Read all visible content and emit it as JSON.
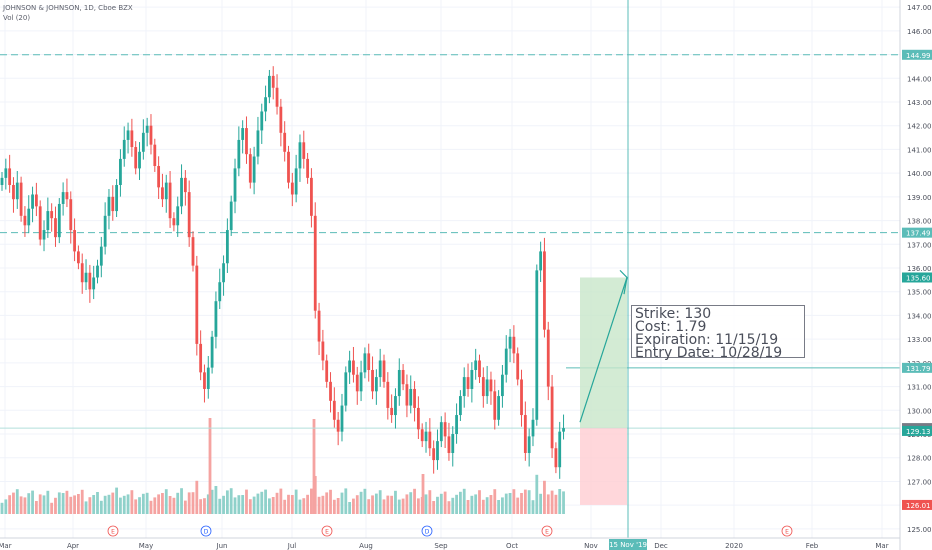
{
  "legend": {
    "symbol_line": "JOHNSON & JOHNSON, 1D, Cboe BZX",
    "volume_line": "Vol (20)"
  },
  "annotation": {
    "strike": "Strike: 130",
    "cost": "Cost: 1.79",
    "expiration": "Expiration: 11/15/19",
    "entry": "Entry Date: 10/28/19"
  },
  "colors": {
    "up": "#26a69a",
    "down": "#ef5350",
    "vol_up": "#8fd1ca",
    "vol_down": "#f5a3a1",
    "guide": "#5bbcb8",
    "profit_zone": "#c8e6c9",
    "loss_zone": "#ffcdd2"
  },
  "chart_data": {
    "type": "candlestick",
    "title": "JOHNSON & JOHNSON, 1D, Cboe BZX",
    "y_axis_ticks": [
      "125.00",
      "126.00",
      "127.00",
      "128.00",
      "129.00",
      "130.00",
      "131.00",
      "132.00",
      "133.00",
      "134.00",
      "135.00",
      "136.00",
      "137.00",
      "138.00",
      "139.00",
      "140.00",
      "141.00",
      "142.00",
      "143.00",
      "144.00",
      "145.00",
      "146.00",
      "147.00"
    ],
    "x_axis_ticks": [
      "Mar",
      "Apr",
      "May",
      "Jun",
      "Jul",
      "Aug",
      "Sep",
      "Oct",
      "Nov",
      "Dec",
      "2020",
      "Feb",
      "Mar"
    ],
    "ylim": [
      124.7,
      147.3
    ],
    "horizontal_lines": [
      144.99,
      137.49,
      131.79
    ],
    "price_labels": [
      {
        "text": "144.99",
        "value": 144.99,
        "color": "#5bbcb8"
      },
      {
        "text": "137.49",
        "value": 137.49,
        "color": "#5bbcb8"
      },
      {
        "text": "135.60",
        "value": 135.6,
        "color": "#26a69a"
      },
      {
        "text": "131.79",
        "value": 131.79,
        "color": "#5bbcb8"
      },
      {
        "text": "129.25",
        "value": 129.25,
        "color": "#787b86"
      },
      {
        "text": "129.13",
        "value": 129.13,
        "color": "#26a69a"
      },
      {
        "text": "126.01",
        "value": 126.01,
        "color": "#ef5350"
      }
    ],
    "crosshair_date_label": "15 Nov '19",
    "target_price": 135.6,
    "entry_price": 129.25,
    "stop_price": 126.01,
    "event_markers": [
      {
        "label": "E",
        "month": "Apr"
      },
      {
        "label": "D",
        "month": "May"
      },
      {
        "label": "E",
        "month": "Jul"
      },
      {
        "label": "D",
        "month": "Aug"
      },
      {
        "label": "E",
        "month": "Oct"
      },
      {
        "label": "E",
        "month": "Jan"
      }
    ],
    "close_series": [
      139.8,
      140.2,
      139.5,
      138.9,
      139.6,
      138.2,
      137.8,
      138.5,
      139.1,
      138.6,
      137.2,
      137.6,
      138.4,
      138.1,
      137.3,
      138.7,
      139.2,
      138.9,
      137.6,
      136.7,
      136.2,
      135.4,
      135.8,
      135.1,
      135.6,
      136.1,
      136.9,
      138.2,
      139.0,
      138.4,
      139.5,
      140.6,
      141.4,
      141.8,
      141.1,
      140.2,
      140.9,
      141.7,
      142.0,
      141.2,
      140.3,
      139.4,
      138.9,
      139.6,
      138.1,
      137.8,
      138.6,
      139.8,
      139.2,
      137.3,
      136.1,
      132.8,
      131.6,
      130.9,
      131.8,
      133.1,
      134.6,
      135.4,
      136.2,
      137.6,
      138.8,
      140.2,
      141.4,
      141.9,
      140.8,
      139.6,
      140.7,
      141.8,
      142.6,
      143.2,
      144.1,
      143.6,
      142.8,
      141.7,
      140.9,
      139.6,
      139.1,
      140.2,
      141.3,
      140.6,
      139.8,
      138.2,
      134.2,
      132.9,
      132.1,
      131.2,
      130.4,
      129.6,
      129.1,
      130.2,
      131.6,
      132.1,
      131.5,
      130.8,
      131.6,
      132.4,
      131.7,
      130.8,
      131.4,
      132.1,
      131.2,
      130.1,
      129.8,
      130.6,
      131.7,
      131.1,
      130.2,
      130.9,
      130.1,
      129.2,
      128.7,
      129.1,
      128.4,
      127.9,
      128.7,
      129.5,
      128.9,
      128.2,
      129.0,
      129.8,
      130.6,
      131.4,
      130.9,
      131.7,
      132.1,
      131.4,
      130.6,
      131.3,
      130.8,
      129.6,
      130.6,
      131.5,
      132.6,
      133.1,
      132.4,
      131.3,
      129.8,
      128.2,
      128.9,
      129.6,
      135.9,
      136.7,
      133.4,
      131.0,
      128.4,
      127.6,
      129.1,
      129.25
    ]
  }
}
